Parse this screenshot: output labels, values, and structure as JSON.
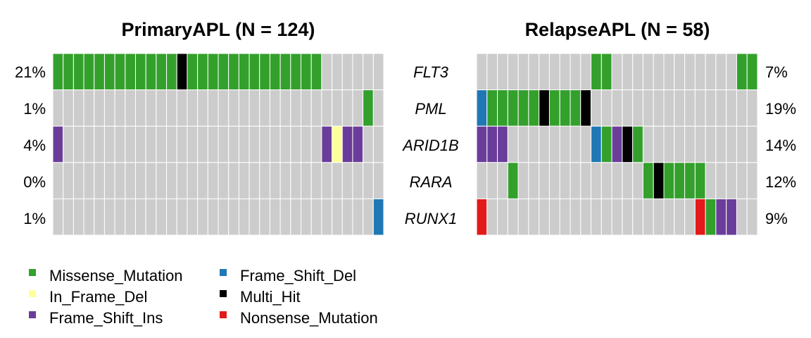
{
  "chart_data": {
    "type": "heatmap",
    "genes": [
      "FLT3",
      "PML",
      "ARID1B",
      "RARA",
      "RUNX1"
    ],
    "legend": [
      {
        "key": "missense",
        "label": "Missense_Mutation",
        "color": "#33a02c"
      },
      {
        "key": "frame_shift_del",
        "label": "Frame_Shift_Del",
        "color": "#1f78b4"
      },
      {
        "key": "in_frame_del",
        "label": "In_Frame_Del",
        "color": "#ffff99"
      },
      {
        "key": "multi_hit",
        "label": "Multi_Hit",
        "color": "#000000"
      },
      {
        "key": "frame_shift_ins",
        "label": "Frame_Shift_Ins",
        "color": "#6a3d9a"
      },
      {
        "key": "nonsense",
        "label": "Nonsense_Mutation",
        "color": "#e31a1c"
      }
    ],
    "background_color": "#cccccc",
    "panels": [
      {
        "title": "PrimaryAPL (N = 124)",
        "n_columns": 32,
        "percentages": [
          "21%",
          "1%",
          "4%",
          "0%",
          "1%"
        ],
        "percent_side": "left",
        "cells": {
          "FLT3": [
            "missense",
            "missense",
            "missense",
            "missense",
            "missense",
            "missense",
            "missense",
            "missense",
            "missense",
            "missense",
            "missense",
            "missense",
            "multi_hit",
            "missense",
            "missense",
            "missense",
            "missense",
            "missense",
            "missense",
            "missense",
            "missense",
            "missense",
            "missense",
            "missense",
            "missense",
            "missense",
            null,
            null,
            null,
            null,
            null,
            null
          ],
          "PML": [
            null,
            null,
            null,
            null,
            null,
            null,
            null,
            null,
            null,
            null,
            null,
            null,
            null,
            null,
            null,
            null,
            null,
            null,
            null,
            null,
            null,
            null,
            null,
            null,
            null,
            null,
            null,
            null,
            null,
            null,
            "missense",
            null
          ],
          "ARID1B": [
            "frame_shift_ins",
            null,
            null,
            null,
            null,
            null,
            null,
            null,
            null,
            null,
            null,
            null,
            null,
            null,
            null,
            null,
            null,
            null,
            null,
            null,
            null,
            null,
            null,
            null,
            null,
            null,
            "frame_shift_ins",
            "in_frame_del",
            "frame_shift_ins",
            "frame_shift_ins",
            null,
            null
          ],
          "RARA": [
            null,
            null,
            null,
            null,
            null,
            null,
            null,
            null,
            null,
            null,
            null,
            null,
            null,
            null,
            null,
            null,
            null,
            null,
            null,
            null,
            null,
            null,
            null,
            null,
            null,
            null,
            null,
            null,
            null,
            null,
            null,
            null
          ],
          "RUNX1": [
            null,
            null,
            null,
            null,
            null,
            null,
            null,
            null,
            null,
            null,
            null,
            null,
            null,
            null,
            null,
            null,
            null,
            null,
            null,
            null,
            null,
            null,
            null,
            null,
            null,
            null,
            null,
            null,
            null,
            null,
            null,
            "frame_shift_del"
          ]
        }
      },
      {
        "title": "RelapseAPL (N = 58)",
        "n_columns": 27,
        "percentages": [
          "7%",
          "19%",
          "14%",
          "12%",
          "9%"
        ],
        "percent_side": "right",
        "cells": {
          "FLT3": [
            null,
            null,
            null,
            null,
            null,
            null,
            null,
            null,
            null,
            null,
            null,
            "missense",
            "missense",
            null,
            null,
            null,
            null,
            null,
            null,
            null,
            null,
            null,
            null,
            null,
            null,
            "missense",
            "missense"
          ],
          "PML": [
            "frame_shift_del",
            "missense",
            "missense",
            "missense",
            "missense",
            "missense",
            "multi_hit",
            "missense",
            "missense",
            "missense",
            "multi_hit",
            null,
            null,
            null,
            null,
            null,
            null,
            null,
            null,
            null,
            null,
            null,
            null,
            null,
            null,
            null,
            null
          ],
          "ARID1B": [
            "frame_shift_ins",
            "frame_shift_ins",
            "frame_shift_ins",
            null,
            null,
            null,
            null,
            null,
            null,
            null,
            null,
            "frame_shift_del",
            "missense",
            "frame_shift_ins",
            "multi_hit",
            "missense",
            null,
            null,
            null,
            null,
            null,
            null,
            null,
            null,
            null,
            null,
            null
          ],
          "RARA": [
            null,
            null,
            null,
            "missense",
            null,
            null,
            null,
            null,
            null,
            null,
            null,
            null,
            null,
            null,
            null,
            null,
            "missense",
            "multi_hit",
            "missense",
            "missense",
            "missense",
            "missense",
            null,
            null,
            null,
            null,
            null
          ],
          "RUNX1": [
            "nonsense",
            null,
            null,
            null,
            null,
            null,
            null,
            null,
            null,
            null,
            null,
            null,
            null,
            null,
            null,
            null,
            null,
            null,
            null,
            null,
            null,
            "nonsense",
            "missense",
            "frame_shift_ins",
            "frame_shift_ins",
            null,
            null
          ]
        }
      }
    ]
  }
}
